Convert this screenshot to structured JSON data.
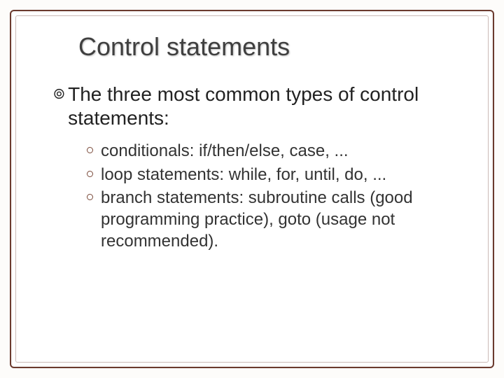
{
  "slide": {
    "background_color": "#fdfcfa",
    "frame_border_color": "#6b3a2e",
    "inner_border_color": "rgba(107,58,46,0.35)",
    "title": "Control statements",
    "title_color": "#3f3f3f",
    "title_fontsize": 36,
    "main_bullet": {
      "glyph": "๏",
      "text": "The three most common types of control statements:",
      "fontsize": 28,
      "color": "#222222"
    },
    "sub_bullets": {
      "ring_color": "#7a4a3a",
      "fontsize": 24,
      "color": "#333333",
      "items": [
        "conditionals:  if/then/else, case, ...",
        "loop statements:  while, for, until, do, ...",
        "branch statements:  subroutine calls (good programming practice),  goto (usage not recommended)."
      ]
    }
  }
}
